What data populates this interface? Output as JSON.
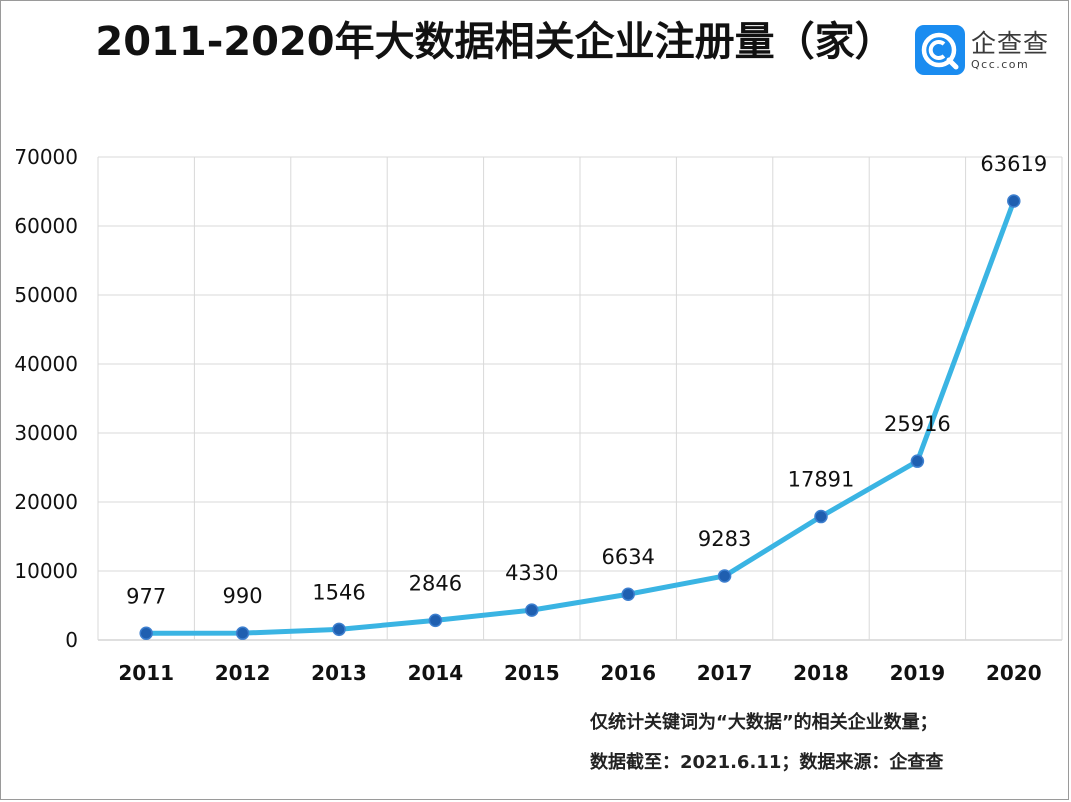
{
  "title": "2011-2020年大数据相关企业注册量（家）",
  "logo": {
    "cn": "企查查",
    "en": "Qcc.com",
    "color": "#1a8cf0"
  },
  "notes": [
    "仅统计关键词为“大数据”的相关企业数量；",
    "数据截至：2021.6.11；数据来源：企查查"
  ],
  "chart_data": {
    "type": "line",
    "title": "2011-2020年大数据相关企业注册量（家）",
    "categories": [
      "2011",
      "2012",
      "2013",
      "2014",
      "2015",
      "2016",
      "2017",
      "2018",
      "2019",
      "2020"
    ],
    "values": [
      977,
      990,
      1546,
      2846,
      4330,
      6634,
      9283,
      17891,
      25916,
      63619
    ],
    "ylim": [
      0,
      70000
    ],
    "yticks": [
      0,
      10000,
      20000,
      30000,
      40000,
      50000,
      60000,
      70000
    ],
    "grid": true,
    "line_color": "#3ab4e3",
    "marker_color": "#1f5fb0"
  }
}
